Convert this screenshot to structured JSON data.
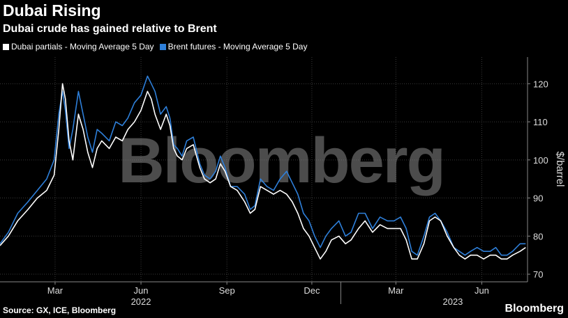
{
  "title": "Dubai Rising",
  "subtitle": "Dubai crude has gained relative to Brent",
  "source": "Source: GX, ICE, Bloomberg",
  "brand": "Bloomberg",
  "watermark": "Bloomberg",
  "colors": {
    "background": "#000000",
    "dubai": "#ffffff",
    "brent": "#2e7fd9",
    "grid": "#3a3a3a"
  },
  "chart_data": {
    "type": "line",
    "ylabel": "$/barrel",
    "ylim": [
      68,
      127
    ],
    "y_ticks": [
      70,
      80,
      90,
      100,
      110,
      120
    ],
    "x_range": [
      "2022-01-01",
      "2023-07-20"
    ],
    "x_ticks": [
      {
        "date": "2022-03-01",
        "label": "Mar"
      },
      {
        "date": "2022-06-01",
        "label": "Jun"
      },
      {
        "date": "2022-09-01",
        "label": "Sep"
      },
      {
        "date": "2022-12-01",
        "label": "Dec"
      },
      {
        "date": "2023-03-01",
        "label": "Mar"
      },
      {
        "date": "2023-06-01",
        "label": "Jun"
      }
    ],
    "year_labels": [
      {
        "date": "2022-06-01",
        "label": "2022"
      },
      {
        "date": "2023-05-01",
        "label": "2023"
      }
    ],
    "year_divider": "2023-01-01",
    "legend_position": "top-left",
    "series": [
      {
        "name": "Dubai partials - Moving Average 5 Day",
        "color": "#ffffff",
        "points": [
          [
            "2022-01-01",
            77.5
          ],
          [
            "2022-01-10",
            80
          ],
          [
            "2022-01-20",
            84
          ],
          [
            "2022-01-31",
            87
          ],
          [
            "2022-02-10",
            90
          ],
          [
            "2022-02-20",
            92
          ],
          [
            "2022-02-28",
            96
          ],
          [
            "2022-03-05",
            108
          ],
          [
            "2022-03-09",
            120
          ],
          [
            "2022-03-12",
            116
          ],
          [
            "2022-03-16",
            105
          ],
          [
            "2022-03-20",
            100
          ],
          [
            "2022-03-26",
            112
          ],
          [
            "2022-03-31",
            108
          ],
          [
            "2022-04-05",
            102
          ],
          [
            "2022-04-10",
            98
          ],
          [
            "2022-04-15",
            103
          ],
          [
            "2022-04-20",
            105
          ],
          [
            "2022-04-28",
            103
          ],
          [
            "2022-05-05",
            106
          ],
          [
            "2022-05-12",
            105
          ],
          [
            "2022-05-18",
            108
          ],
          [
            "2022-05-25",
            110
          ],
          [
            "2022-06-01",
            113
          ],
          [
            "2022-06-08",
            118
          ],
          [
            "2022-06-12",
            116
          ],
          [
            "2022-06-16",
            112
          ],
          [
            "2022-06-22",
            108
          ],
          [
            "2022-06-28",
            112
          ],
          [
            "2022-07-02",
            109
          ],
          [
            "2022-07-06",
            103
          ],
          [
            "2022-07-10",
            101
          ],
          [
            "2022-07-15",
            100
          ],
          [
            "2022-07-20",
            103
          ],
          [
            "2022-07-27",
            104
          ],
          [
            "2022-08-03",
            98
          ],
          [
            "2022-08-08",
            95
          ],
          [
            "2022-08-14",
            94
          ],
          [
            "2022-08-20",
            95
          ],
          [
            "2022-08-25",
            99
          ],
          [
            "2022-08-30",
            97
          ],
          [
            "2022-09-05",
            93
          ],
          [
            "2022-09-12",
            92
          ],
          [
            "2022-09-20",
            89
          ],
          [
            "2022-09-26",
            86
          ],
          [
            "2022-10-01",
            87
          ],
          [
            "2022-10-07",
            93
          ],
          [
            "2022-10-14",
            92
          ],
          [
            "2022-10-21",
            91
          ],
          [
            "2022-10-28",
            92
          ],
          [
            "2022-11-04",
            91
          ],
          [
            "2022-11-10",
            89
          ],
          [
            "2022-11-16",
            86
          ],
          [
            "2022-11-22",
            82
          ],
          [
            "2022-11-28",
            80
          ],
          [
            "2022-12-04",
            77
          ],
          [
            "2022-12-10",
            74
          ],
          [
            "2022-12-16",
            76
          ],
          [
            "2022-12-22",
            79
          ],
          [
            "2022-12-30",
            80
          ],
          [
            "2023-01-06",
            78
          ],
          [
            "2023-01-12",
            79
          ],
          [
            "2023-01-20",
            82
          ],
          [
            "2023-01-27",
            84
          ],
          [
            "2023-02-04",
            81
          ],
          [
            "2023-02-12",
            83
          ],
          [
            "2023-02-20",
            82
          ],
          [
            "2023-02-27",
            82
          ],
          [
            "2023-03-06",
            82
          ],
          [
            "2023-03-12",
            79
          ],
          [
            "2023-03-18",
            74
          ],
          [
            "2023-03-24",
            74
          ],
          [
            "2023-03-31",
            78
          ],
          [
            "2023-04-06",
            84
          ],
          [
            "2023-04-12",
            85
          ],
          [
            "2023-04-18",
            84
          ],
          [
            "2023-04-25",
            80
          ],
          [
            "2023-05-02",
            77
          ],
          [
            "2023-05-08",
            75
          ],
          [
            "2023-05-14",
            74
          ],
          [
            "2023-05-20",
            75
          ],
          [
            "2023-05-27",
            75
          ],
          [
            "2023-06-03",
            74
          ],
          [
            "2023-06-10",
            75
          ],
          [
            "2023-06-16",
            75
          ],
          [
            "2023-06-22",
            74
          ],
          [
            "2023-06-28",
            74
          ],
          [
            "2023-07-04",
            75
          ],
          [
            "2023-07-12",
            76
          ],
          [
            "2023-07-18",
            77
          ]
        ]
      },
      {
        "name": "Brent futures - Moving Average 5 Day",
        "color": "#2e7fd9",
        "points": [
          [
            "2022-01-01",
            78
          ],
          [
            "2022-01-10",
            81
          ],
          [
            "2022-01-20",
            86
          ],
          [
            "2022-01-31",
            89
          ],
          [
            "2022-02-10",
            92
          ],
          [
            "2022-02-20",
            95
          ],
          [
            "2022-02-28",
            100
          ],
          [
            "2022-03-05",
            112
          ],
          [
            "2022-03-09",
            118
          ],
          [
            "2022-03-12",
            113
          ],
          [
            "2022-03-16",
            103
          ],
          [
            "2022-03-20",
            108
          ],
          [
            "2022-03-26",
            118
          ],
          [
            "2022-03-31",
            112
          ],
          [
            "2022-04-05",
            106
          ],
          [
            "2022-04-10",
            102
          ],
          [
            "2022-04-15",
            108
          ],
          [
            "2022-04-20",
            107
          ],
          [
            "2022-04-28",
            105
          ],
          [
            "2022-05-05",
            110
          ],
          [
            "2022-05-12",
            109
          ],
          [
            "2022-05-18",
            111
          ],
          [
            "2022-05-25",
            115
          ],
          [
            "2022-06-01",
            117
          ],
          [
            "2022-06-08",
            122
          ],
          [
            "2022-06-12",
            120
          ],
          [
            "2022-06-16",
            118
          ],
          [
            "2022-06-22",
            112
          ],
          [
            "2022-06-28",
            114
          ],
          [
            "2022-07-02",
            111
          ],
          [
            "2022-07-06",
            104
          ],
          [
            "2022-07-10",
            103
          ],
          [
            "2022-07-15",
            101
          ],
          [
            "2022-07-20",
            105
          ],
          [
            "2022-07-27",
            106
          ],
          [
            "2022-08-03",
            99
          ],
          [
            "2022-08-08",
            96
          ],
          [
            "2022-08-14",
            95
          ],
          [
            "2022-08-20",
            97
          ],
          [
            "2022-08-25",
            101
          ],
          [
            "2022-08-30",
            98
          ],
          [
            "2022-09-05",
            93
          ],
          [
            "2022-09-12",
            93
          ],
          [
            "2022-09-20",
            91
          ],
          [
            "2022-09-26",
            87
          ],
          [
            "2022-10-01",
            88
          ],
          [
            "2022-10-07",
            95
          ],
          [
            "2022-10-14",
            93
          ],
          [
            "2022-10-21",
            92
          ],
          [
            "2022-10-28",
            95
          ],
          [
            "2022-11-04",
            97
          ],
          [
            "2022-11-10",
            94
          ],
          [
            "2022-11-16",
            91
          ],
          [
            "2022-11-22",
            86
          ],
          [
            "2022-11-28",
            84
          ],
          [
            "2022-12-04",
            80
          ],
          [
            "2022-12-10",
            77
          ],
          [
            "2022-12-16",
            80
          ],
          [
            "2022-12-22",
            82
          ],
          [
            "2022-12-30",
            84
          ],
          [
            "2023-01-06",
            80
          ],
          [
            "2023-01-12",
            81
          ],
          [
            "2023-01-20",
            86
          ],
          [
            "2023-01-27",
            86
          ],
          [
            "2023-02-04",
            82
          ],
          [
            "2023-02-12",
            85
          ],
          [
            "2023-02-20",
            84
          ],
          [
            "2023-02-27",
            84
          ],
          [
            "2023-03-06",
            85
          ],
          [
            "2023-03-12",
            82
          ],
          [
            "2023-03-18",
            76
          ],
          [
            "2023-03-24",
            75
          ],
          [
            "2023-03-31",
            80
          ],
          [
            "2023-04-06",
            85
          ],
          [
            "2023-04-12",
            86
          ],
          [
            "2023-04-18",
            84
          ],
          [
            "2023-04-25",
            81
          ],
          [
            "2023-05-02",
            77
          ],
          [
            "2023-05-08",
            76
          ],
          [
            "2023-05-14",
            75
          ],
          [
            "2023-05-20",
            76
          ],
          [
            "2023-05-27",
            77
          ],
          [
            "2023-06-03",
            76
          ],
          [
            "2023-06-10",
            76
          ],
          [
            "2023-06-16",
            77
          ],
          [
            "2023-06-22",
            75
          ],
          [
            "2023-06-28",
            75
          ],
          [
            "2023-07-04",
            76
          ],
          [
            "2023-07-12",
            78
          ],
          [
            "2023-07-18",
            78
          ]
        ]
      }
    ]
  }
}
